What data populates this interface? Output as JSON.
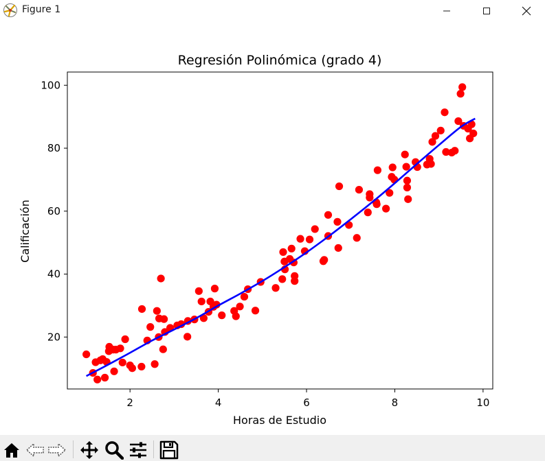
{
  "window": {
    "title": "Figure 1",
    "controls": [
      "minimize",
      "maximize",
      "close"
    ]
  },
  "toolbar": {
    "buttons": [
      {
        "name": "home",
        "icon": "home-icon"
      },
      {
        "name": "back",
        "icon": "back-arrow-icon"
      },
      {
        "name": "forward",
        "icon": "forward-arrow-icon"
      },
      {
        "name": "pan",
        "icon": "move-icon"
      },
      {
        "name": "zoom",
        "icon": "magnifier-icon"
      },
      {
        "name": "configure-subplots",
        "icon": "sliders-icon"
      },
      {
        "name": "save",
        "icon": "floppy-disk-icon"
      }
    ]
  },
  "colors": {
    "points": "#ff0000",
    "curve": "#0000ff",
    "axes": "#000000",
    "toolbar_bg": "#f0f0f0"
  },
  "chart_data": {
    "type": "scatter",
    "title": "Regresión Polinómica (grado 4)",
    "xlabel": "Horas de Estudio",
    "ylabel": "Calificación",
    "xlim": [
      0.58,
      10.22
    ],
    "ylim": [
      3.5,
      104.2
    ],
    "xticks": [
      2,
      4,
      6,
      8,
      10
    ],
    "yticks": [
      20,
      40,
      60,
      80,
      100
    ],
    "grid": false,
    "series": [
      {
        "kind": "scatter",
        "color": "#ff0000",
        "points": [
          [
            1.01,
            14.5
          ],
          [
            1.16,
            8.6
          ],
          [
            1.22,
            12.0
          ],
          [
            1.26,
            6.5
          ],
          [
            1.33,
            12.6
          ],
          [
            1.38,
            13.0
          ],
          [
            1.43,
            7.1
          ],
          [
            1.47,
            12.1
          ],
          [
            1.52,
            15.5
          ],
          [
            1.53,
            16.9
          ],
          [
            1.62,
            16.0
          ],
          [
            1.64,
            9.1
          ],
          [
            1.68,
            16.0
          ],
          [
            1.78,
            16.4
          ],
          [
            1.83,
            11.9
          ],
          [
            1.89,
            19.3
          ],
          [
            2.0,
            11.0
          ],
          [
            2.05,
            10.1
          ],
          [
            2.26,
            10.6
          ],
          [
            2.27,
            28.9
          ],
          [
            2.39,
            18.9
          ],
          [
            2.46,
            23.2
          ],
          [
            2.56,
            11.4
          ],
          [
            2.61,
            28.3
          ],
          [
            2.65,
            20.0
          ],
          [
            2.66,
            25.9
          ],
          [
            2.7,
            38.6
          ],
          [
            2.75,
            16.1
          ],
          [
            2.77,
            25.7
          ],
          [
            2.79,
            21.6
          ],
          [
            2.91,
            22.9
          ],
          [
            3.07,
            23.7
          ],
          [
            3.16,
            24.1
          ],
          [
            3.3,
            20.1
          ],
          [
            3.31,
            25.1
          ],
          [
            3.46,
            25.6
          ],
          [
            3.56,
            34.6
          ],
          [
            3.62,
            31.3
          ],
          [
            3.67,
            26.0
          ],
          [
            3.78,
            28.0
          ],
          [
            3.82,
            31.3
          ],
          [
            3.89,
            29.6
          ],
          [
            3.92,
            35.4
          ],
          [
            3.96,
            30.3
          ],
          [
            4.08,
            26.9
          ],
          [
            4.36,
            28.3
          ],
          [
            4.4,
            26.6
          ],
          [
            4.49,
            29.7
          ],
          [
            4.59,
            32.8
          ],
          [
            4.67,
            35.2
          ],
          [
            4.84,
            28.4
          ],
          [
            4.96,
            37.5
          ],
          [
            5.3,
            35.6
          ],
          [
            5.45,
            38.4
          ],
          [
            5.47,
            47.0
          ],
          [
            5.5,
            44.0
          ],
          [
            5.51,
            41.5
          ],
          [
            5.62,
            44.8
          ],
          [
            5.66,
            48.1
          ],
          [
            5.71,
            43.7
          ],
          [
            5.73,
            39.4
          ],
          [
            5.73,
            37.8
          ],
          [
            5.86,
            51.2
          ],
          [
            5.96,
            47.3
          ],
          [
            6.07,
            51.0
          ],
          [
            6.19,
            54.3
          ],
          [
            6.38,
            44.1
          ],
          [
            6.4,
            44.5
          ],
          [
            6.49,
            58.8
          ],
          [
            6.49,
            52.1
          ],
          [
            6.7,
            56.6
          ],
          [
            6.72,
            48.3
          ],
          [
            6.74,
            67.9
          ],
          [
            6.96,
            55.6
          ],
          [
            7.14,
            51.5
          ],
          [
            7.19,
            66.8
          ],
          [
            7.39,
            59.6
          ],
          [
            7.43,
            65.4
          ],
          [
            7.43,
            64.3
          ],
          [
            7.58,
            62.8
          ],
          [
            7.59,
            62.2
          ],
          [
            7.61,
            73.0
          ],
          [
            7.8,
            60.8
          ],
          [
            7.88,
            65.8
          ],
          [
            7.93,
            70.9
          ],
          [
            7.95,
            73.9
          ],
          [
            7.99,
            70.0
          ],
          [
            8.23,
            78.0
          ],
          [
            8.26,
            74.1
          ],
          [
            8.28,
            69.7
          ],
          [
            8.28,
            67.5
          ],
          [
            8.3,
            63.8
          ],
          [
            8.47,
            75.6
          ],
          [
            8.51,
            74.0
          ],
          [
            8.73,
            74.8
          ],
          [
            8.79,
            76.6
          ],
          [
            8.82,
            75.0
          ],
          [
            8.85,
            82.0
          ],
          [
            8.92,
            83.9
          ],
          [
            9.04,
            85.6
          ],
          [
            9.13,
            91.4
          ],
          [
            9.16,
            78.8
          ],
          [
            9.29,
            78.6
          ],
          [
            9.36,
            79.2
          ],
          [
            9.44,
            88.6
          ],
          [
            9.49,
            97.3
          ],
          [
            9.53,
            99.4
          ],
          [
            9.56,
            87.1
          ],
          [
            9.66,
            86.2
          ],
          [
            9.7,
            83.1
          ],
          [
            9.74,
            87.6
          ],
          [
            9.78,
            84.7
          ]
        ]
      },
      {
        "kind": "line",
        "name": "",
        "color": "#0000ff",
        "x": [
          1.01,
          1.5,
          2.0,
          2.5,
          3.0,
          3.5,
          4.0,
          4.5,
          5.0,
          5.5,
          6.0,
          6.5,
          7.0,
          7.5,
          8.0,
          8.5,
          9.0,
          9.5,
          9.82
        ],
        "y": [
          7.6,
          11.2,
          15.0,
          18.9,
          22.4,
          26.0,
          30.0,
          33.8,
          37.8,
          42.2,
          46.9,
          52.0,
          57.4,
          63.0,
          68.9,
          75.0,
          81.0,
          86.8,
          89.4
        ]
      }
    ]
  }
}
